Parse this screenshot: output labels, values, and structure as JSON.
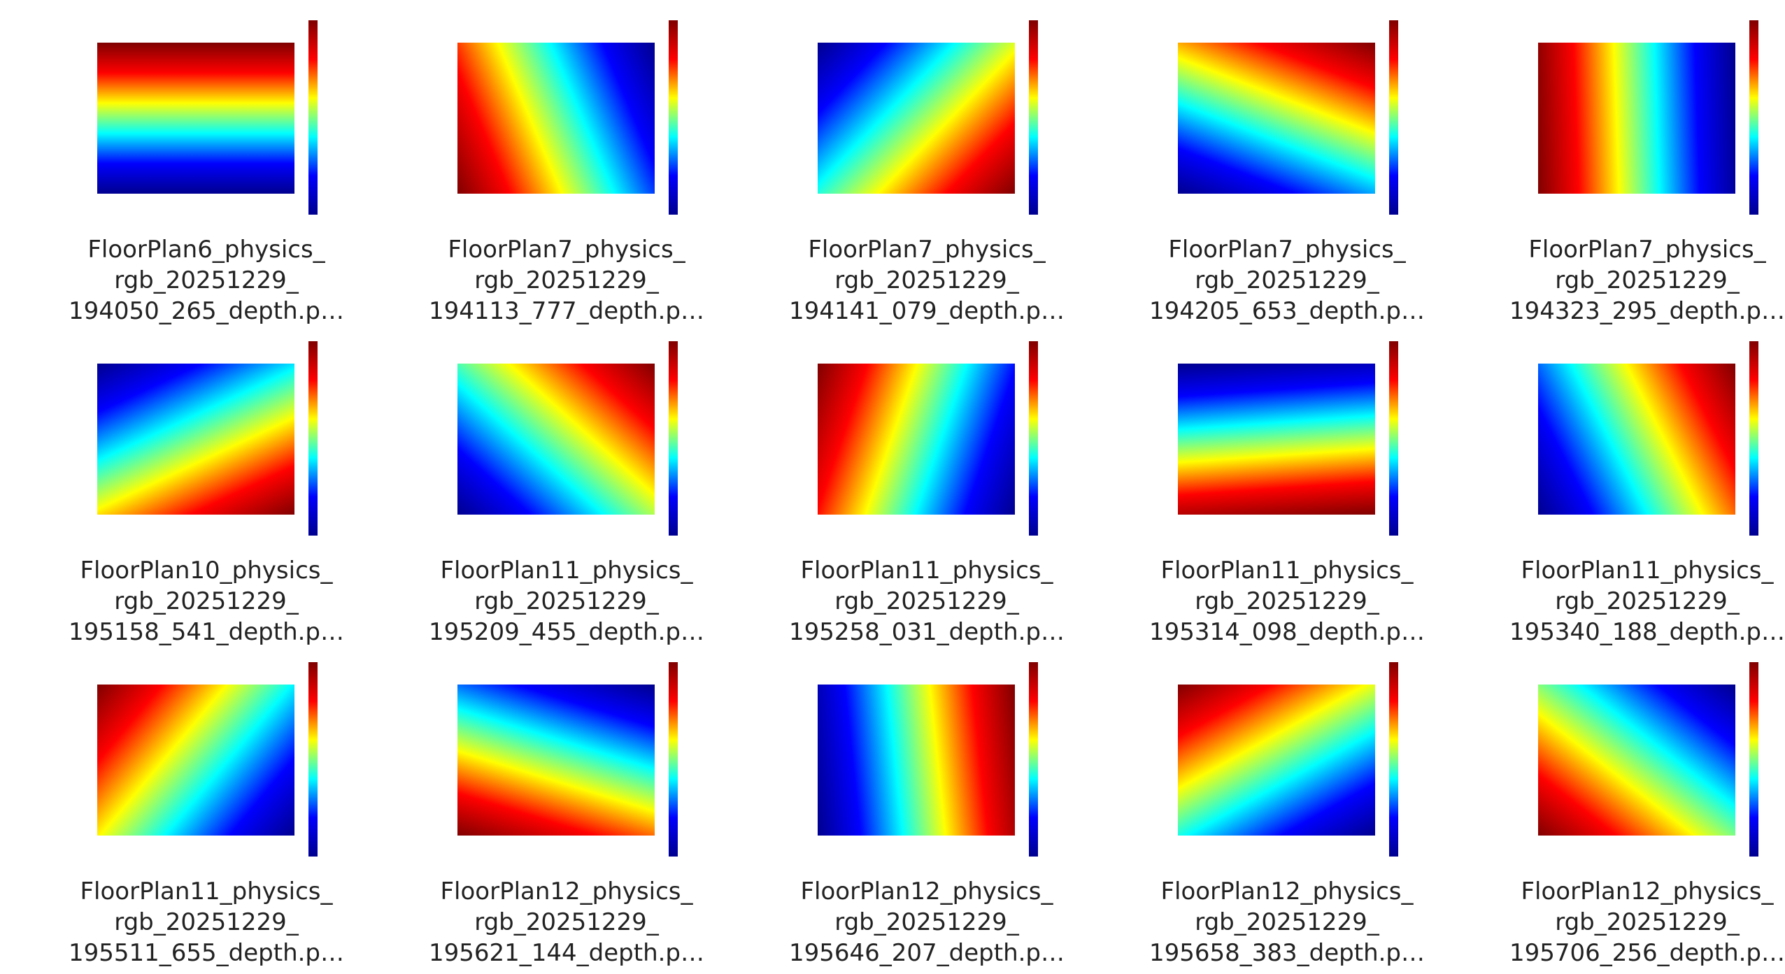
{
  "files": [
    {
      "name_lines": [
        "FloorPlan6_physics_",
        "rgb_20251229_",
        "194050_265_depth.p…"
      ]
    },
    {
      "name_lines": [
        "FloorPlan7_physics_",
        "rgb_20251229_",
        "194113_777_depth.p…"
      ]
    },
    {
      "name_lines": [
        "FloorPlan7_physics_",
        "rgb_20251229_",
        "194141_079_depth.p…"
      ]
    },
    {
      "name_lines": [
        "FloorPlan7_physics_",
        "rgb_20251229_",
        "194205_653_depth.p…"
      ]
    },
    {
      "name_lines": [
        "FloorPlan7_physics_",
        "rgb_20251229_",
        "194323_295_depth.p…"
      ]
    },
    {
      "name_lines": [
        "FloorPlan10_physics_",
        "rgb_20251229_",
        "195158_541_depth.p…"
      ]
    },
    {
      "name_lines": [
        "FloorPlan11_physics_",
        "rgb_20251229_",
        "195209_455_depth.p…"
      ]
    },
    {
      "name_lines": [
        "FloorPlan11_physics_",
        "rgb_20251229_",
        "195258_031_depth.p…"
      ]
    },
    {
      "name_lines": [
        "FloorPlan11_physics_",
        "rgb_20251229_",
        "195314_098_depth.p…"
      ]
    },
    {
      "name_lines": [
        "FloorPlan11_physics_",
        "rgb_20251229_",
        "195340_188_depth.p…"
      ]
    },
    {
      "name_lines": [
        "FloorPlan11_physics_",
        "rgb_20251229_",
        "195511_655_depth.p…"
      ]
    },
    {
      "name_lines": [
        "FloorPlan12_physics_",
        "rgb_20251229_",
        "195621_144_depth.p…"
      ]
    },
    {
      "name_lines": [
        "FloorPlan12_physics_",
        "rgb_20251229_",
        "195646_207_depth.p…"
      ]
    },
    {
      "name_lines": [
        "FloorPlan12_physics_",
        "rgb_20251229_",
        "195658_383_depth.p…"
      ]
    },
    {
      "name_lines": [
        "FloorPlan12_physics_",
        "rgb_20251229_",
        "195706_256_depth.p…"
      ]
    }
  ]
}
